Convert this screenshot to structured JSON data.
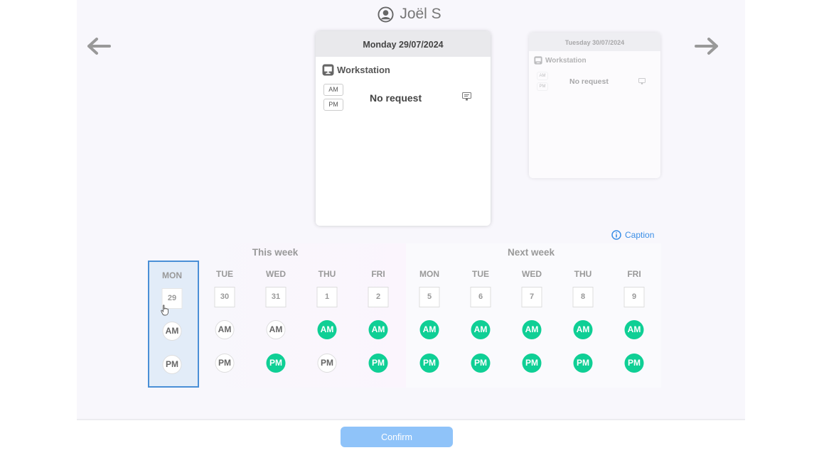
{
  "header": {
    "user_name": "Joël S",
    "user_icon": "user-circle-icon"
  },
  "nav": {
    "prev_icon": "arrow-left-icon",
    "next_icon": "arrow-right-icon"
  },
  "card_current": {
    "date": "Monday 29/07/2024",
    "resource": "Workstation",
    "am": "AM",
    "pm": "PM",
    "status": "No request"
  },
  "card_next": {
    "date": "Tuesday 30/07/2024",
    "resource": "Workstation",
    "am": "AM",
    "pm": "PM",
    "status": "No request"
  },
  "caption": {
    "label": "Caption",
    "icon": "info-icon"
  },
  "weeks": {
    "this_label": "This week",
    "next_label": "Next week"
  },
  "days": [
    {
      "name": "MON",
      "num": "29",
      "am": "AM",
      "pm": "PM",
      "am_booked": false,
      "pm_booked": false,
      "selected": true
    },
    {
      "name": "TUE",
      "num": "30",
      "am": "AM",
      "pm": "PM",
      "am_booked": false,
      "pm_booked": false
    },
    {
      "name": "WED",
      "num": "31",
      "am": "AM",
      "pm": "PM",
      "am_booked": false,
      "pm_booked": true
    },
    {
      "name": "THU",
      "num": "1",
      "am": "AM",
      "pm": "PM",
      "am_booked": true,
      "pm_booked": false
    },
    {
      "name": "FRI",
      "num": "2",
      "am": "AM",
      "pm": "PM",
      "am_booked": true,
      "pm_booked": true
    },
    {
      "name": "MON",
      "num": "5",
      "am": "AM",
      "pm": "PM",
      "am_booked": true,
      "pm_booked": true
    },
    {
      "name": "TUE",
      "num": "6",
      "am": "AM",
      "pm": "PM",
      "am_booked": true,
      "pm_booked": true
    },
    {
      "name": "WED",
      "num": "7",
      "am": "AM",
      "pm": "PM",
      "am_booked": true,
      "pm_booked": true
    },
    {
      "name": "THU",
      "num": "8",
      "am": "AM",
      "pm": "PM",
      "am_booked": true,
      "pm_booked": true
    },
    {
      "name": "FRI",
      "num": "9",
      "am": "AM",
      "pm": "PM",
      "am_booked": true,
      "pm_booked": true
    }
  ],
  "footer": {
    "confirm_label": "Confirm"
  },
  "colors": {
    "booked": "#0fcf95",
    "accent": "#3a8ee6",
    "confirm": "#8fc3f9",
    "selected_border": "#4a8fd6"
  }
}
